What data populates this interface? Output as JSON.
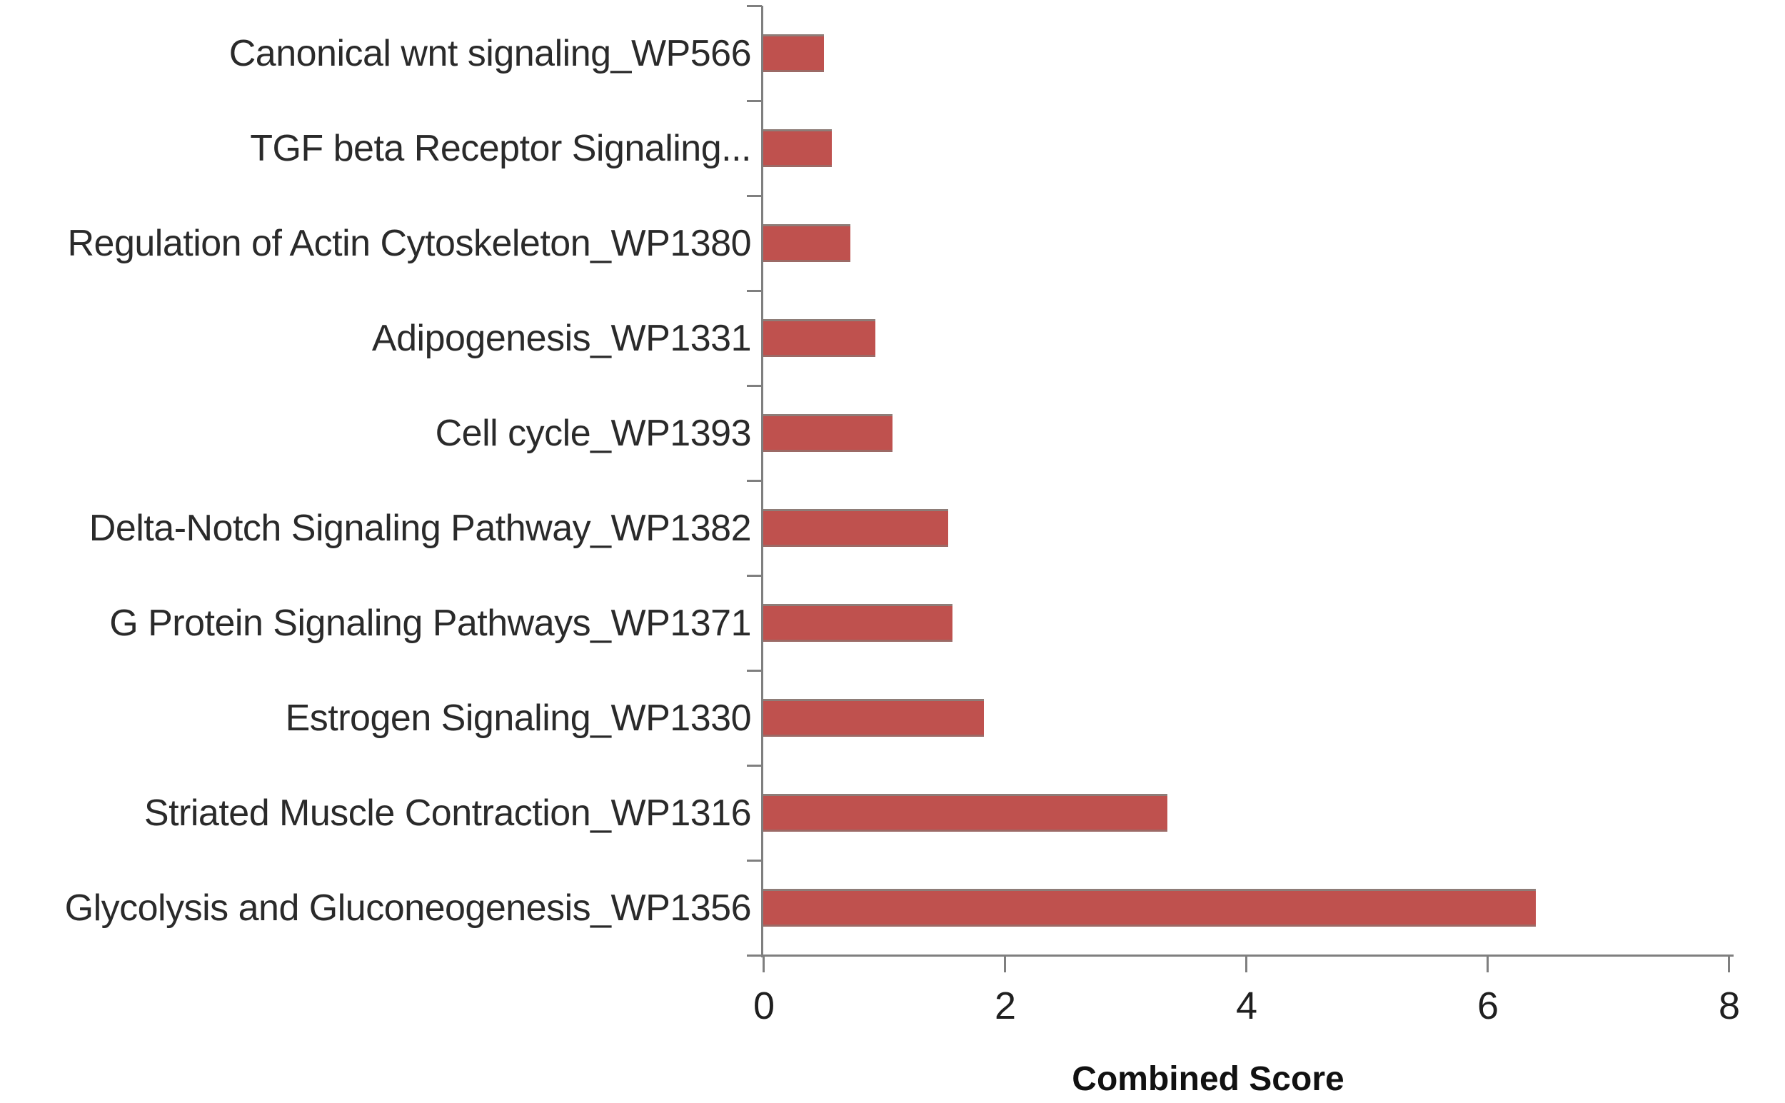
{
  "chart_data": {
    "type": "bar",
    "orientation": "horizontal",
    "title": "",
    "xlabel": "Combined Score",
    "ylabel": "",
    "xlim": [
      0,
      8
    ],
    "x_ticks": [
      "0",
      "2",
      "4",
      "6",
      "8"
    ],
    "grid": false,
    "legend_position": "none",
    "bar_color": "#BF514E",
    "axis_color": "#7F7F7F",
    "text_color": "#2A2A2A",
    "categories": [
      "Canonical wnt signaling_WP566",
      "TGF beta Receptor Signaling...",
      "Regulation of Actin Cytoskeleton_WP1380",
      "Adipogenesis_WP1331",
      "Cell cycle_WP1393",
      "Delta-Notch Signaling Pathway_WP1382",
      "G Protein Signaling Pathways_WP1371",
      "Estrogen Signaling_WP1330",
      "Striated Muscle Contraction_WP1316",
      "Glycolysis and Gluconeogenesis_WP1356"
    ],
    "values": [
      0.5,
      0.57,
      0.72,
      0.93,
      1.07,
      1.53,
      1.57,
      1.83,
      3.35,
      6.4
    ]
  }
}
